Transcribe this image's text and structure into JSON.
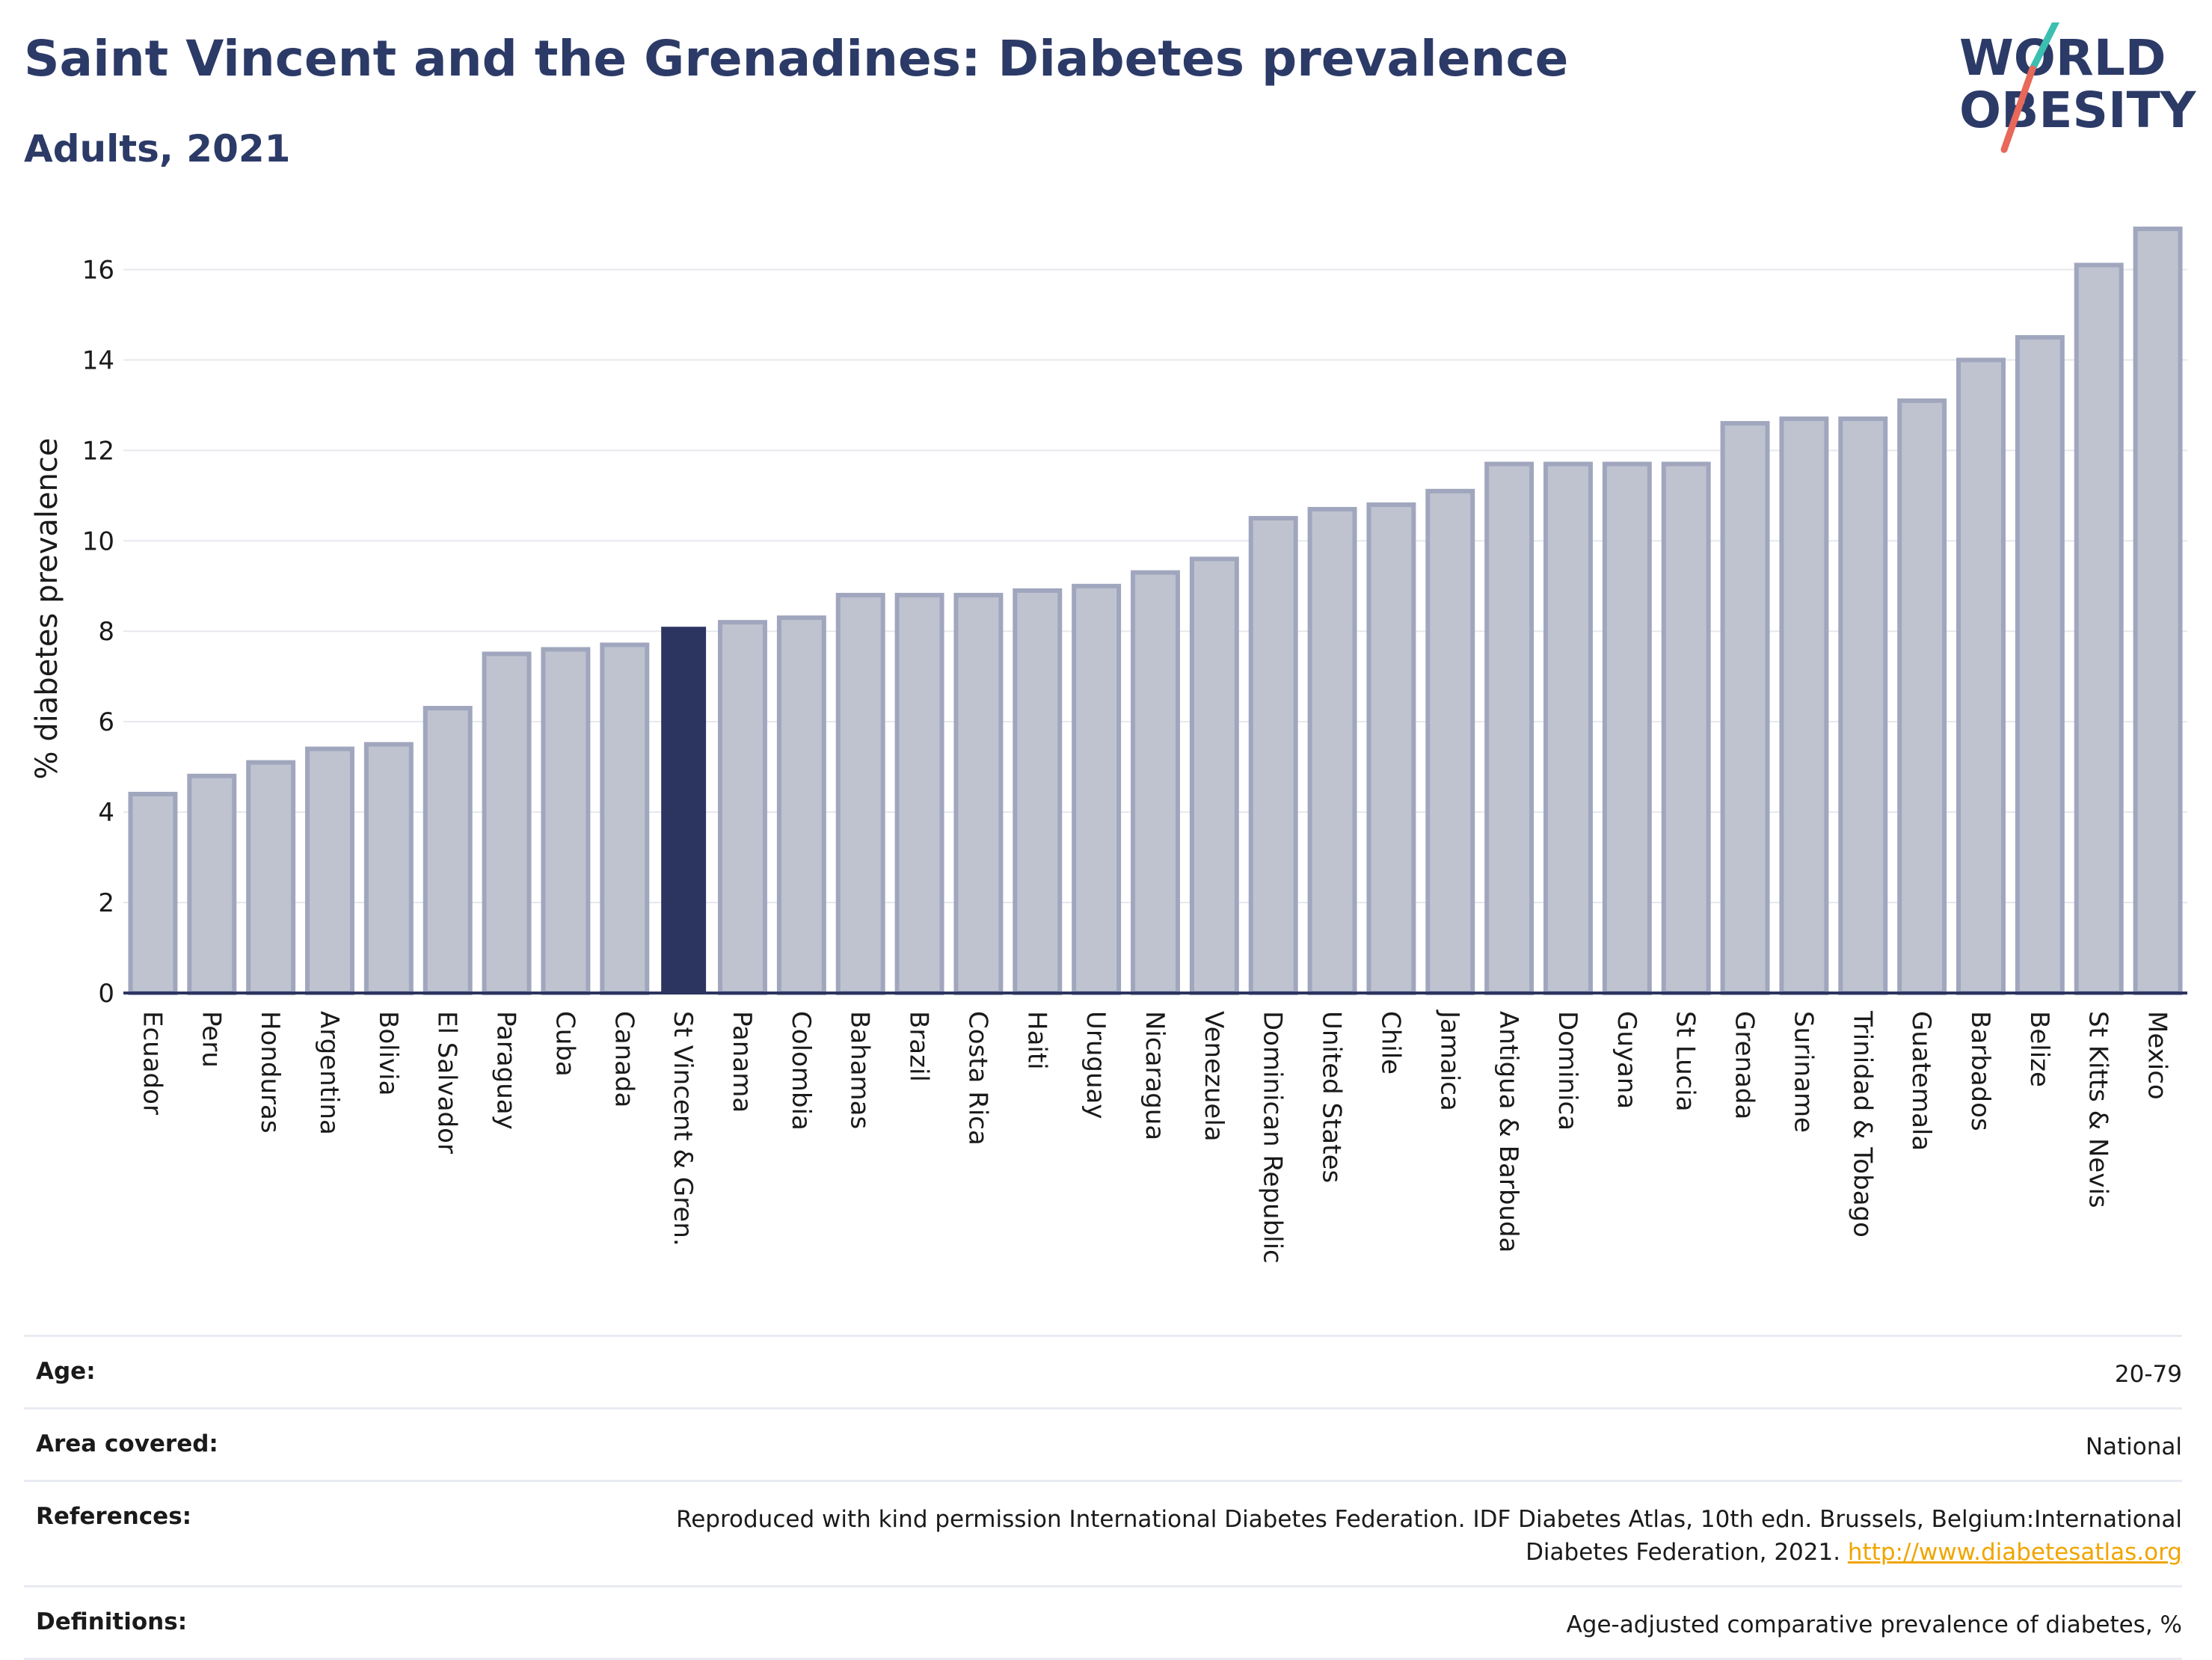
{
  "title": "Saint Vincent and the Grenadines: Diabetes prevalence",
  "subtitle": "Adults, 2021",
  "logo": {
    "line1": "WORLD",
    "line2": "OBESITY"
  },
  "colors": {
    "highlight": "#2c3560",
    "bar": "#bfc3d0",
    "bar_border": "#a0a6bd",
    "title": "#2c3a67",
    "logo_teal": "#3bbfb1",
    "logo_red": "#e8685a"
  },
  "chart_data": {
    "type": "bar",
    "ylabel": "% diabetes prevalence",
    "xlabel": "",
    "ylim": [
      0,
      17
    ],
    "yticks": [
      0,
      2,
      4,
      6,
      8,
      10,
      12,
      14,
      16
    ],
    "grid": true,
    "highlight": "St Vincent & Gren.",
    "categories": [
      "Ecuador",
      "Peru",
      "Honduras",
      "Argentina",
      "Bolivia",
      "El Salvador",
      "Paraguay",
      "Cuba",
      "Canada",
      "St Vincent & Gren.",
      "Panama",
      "Colombia",
      "Bahamas",
      "Brazil",
      "Costa Rica",
      "Haiti",
      "Uruguay",
      "Nicaragua",
      "Venezuela",
      "Dominican Republic",
      "United States",
      "Chile",
      "Jamaica",
      "Antigua & Barbuda",
      "Dominica",
      "Guyana",
      "St Lucia",
      "Grenada",
      "Suriname",
      "Trinidad & Tobago",
      "Guatemala",
      "Barbados",
      "Belize",
      "St Kitts & Nevis",
      "Mexico"
    ],
    "values": [
      4.4,
      4.8,
      5.1,
      5.4,
      5.5,
      6.3,
      7.5,
      7.6,
      7.7,
      8.1,
      8.2,
      8.3,
      8.8,
      8.8,
      8.8,
      8.9,
      9.0,
      9.3,
      9.6,
      10.5,
      10.7,
      10.8,
      11.1,
      11.7,
      11.7,
      11.7,
      11.7,
      12.6,
      12.7,
      12.7,
      13.1,
      14.0,
      14.5,
      16.1,
      16.9
    ]
  },
  "meta": [
    {
      "label": "Age:",
      "value": "20-79"
    },
    {
      "label": "Area covered:",
      "value": "National"
    },
    {
      "label": "References:",
      "value": "Reproduced with kind permission International Diabetes Federation.  IDF Diabetes Atlas, 10th edn. Brussels, Belgium:International Diabetes Federation, 2021. ",
      "link": "http://www.diabetesatlas.org"
    },
    {
      "label": "Definitions:",
      "value": "Age-adjusted comparative prevalence of diabetes, %"
    }
  ]
}
